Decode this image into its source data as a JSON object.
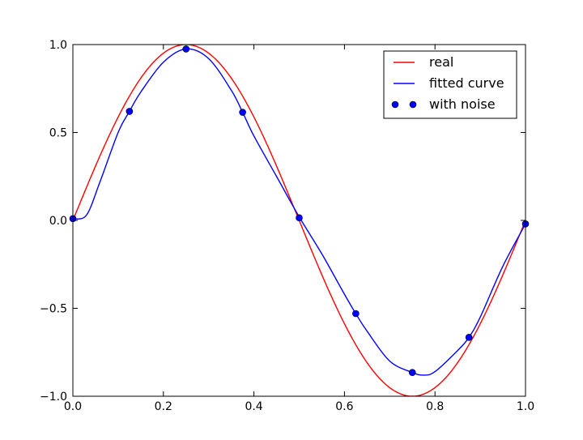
{
  "chart_data": {
    "type": "line",
    "title": "",
    "xlabel": "",
    "ylabel": "",
    "xlim": [
      0.0,
      1.0
    ],
    "ylim": [
      -1.0,
      1.0
    ],
    "xticks": [
      "0.0",
      "0.2",
      "0.4",
      "0.6",
      "0.8",
      "1.0"
    ],
    "yticks": [
      "1.0",
      "0.5",
      "0.0",
      "−0.5",
      "−1.0"
    ],
    "grid": false,
    "legend_position": "top-right",
    "series": [
      {
        "name": "real",
        "kind": "line",
        "color": "#ff0000",
        "function": "sin(2*pi*x)",
        "x": [
          0.0,
          0.05,
          0.1,
          0.15,
          0.2,
          0.25,
          0.3,
          0.35,
          0.4,
          0.45,
          0.5,
          0.55,
          0.6,
          0.65,
          0.7,
          0.75,
          0.8,
          0.85,
          0.9,
          0.95,
          1.0
        ],
        "y": [
          0.0,
          0.309,
          0.588,
          0.809,
          0.951,
          1.0,
          0.951,
          0.809,
          0.588,
          0.309,
          0.0,
          -0.309,
          -0.588,
          -0.809,
          -0.951,
          -1.0,
          -0.951,
          -0.809,
          -0.588,
          -0.309,
          0.0
        ]
      },
      {
        "name": "fitted curve",
        "kind": "line",
        "color": "#0000ff",
        "x": [
          0.0,
          0.03,
          0.06,
          0.1,
          0.125,
          0.15,
          0.2,
          0.25,
          0.3,
          0.35,
          0.375,
          0.4,
          0.45,
          0.5,
          0.55,
          0.6,
          0.625,
          0.65,
          0.7,
          0.75,
          0.775,
          0.8,
          0.85,
          0.875,
          0.9,
          0.95,
          1.0
        ],
        "y": [
          0.01,
          0.03,
          0.22,
          0.5,
          0.62,
          0.73,
          0.9,
          0.975,
          0.92,
          0.74,
          0.615,
          0.48,
          0.25,
          0.02,
          -0.19,
          -0.42,
          -0.53,
          -0.63,
          -0.8,
          -0.865,
          -0.88,
          -0.86,
          -0.74,
          -0.665,
          -0.55,
          -0.26,
          -0.02
        ]
      },
      {
        "name": "with noise",
        "kind": "scatter",
        "color": "#0000ff",
        "x": [
          0.0,
          0.125,
          0.25,
          0.375,
          0.5,
          0.625,
          0.75,
          0.875,
          1.0
        ],
        "y": [
          0.01,
          0.62,
          0.975,
          0.615,
          0.015,
          -0.53,
          -0.865,
          -0.665,
          -0.02
        ]
      }
    ]
  }
}
